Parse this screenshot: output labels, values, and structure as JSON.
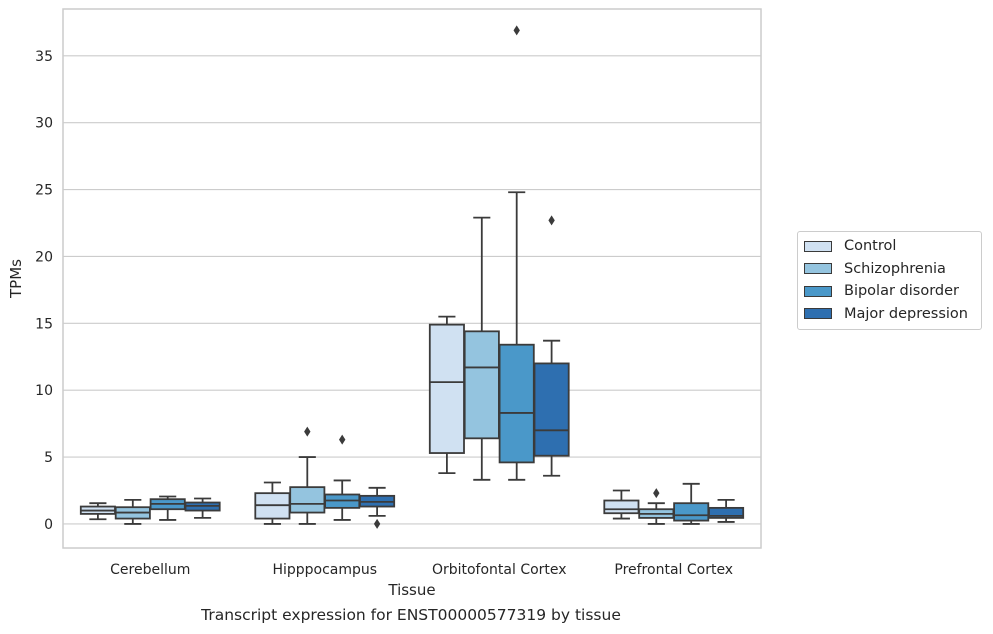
{
  "caption": "Transcript expression for ENST00000577319 by tissue",
  "chart_data": {
    "type": "box",
    "title": "",
    "xlabel": "Tissue",
    "ylabel": "TPMs",
    "ylim": [
      -1.8,
      38.5
    ],
    "yticks": [
      0,
      5,
      10,
      15,
      20,
      25,
      30,
      35
    ],
    "grid": "horizontal",
    "legend_position": "right",
    "categories": [
      "Cerebellum",
      "Hipppocampus",
      "Orbitofontal Cortex",
      "Prefrontal Cortex"
    ],
    "series": [
      {
        "name": "Control",
        "color": "#d0e1f2",
        "boxes": [
          {
            "whislo": 0.35,
            "q1": 0.75,
            "med": 1.0,
            "q3": 1.3,
            "whishi": 1.55,
            "fliers": []
          },
          {
            "whislo": 0.0,
            "q1": 0.4,
            "med": 1.4,
            "q3": 2.3,
            "whishi": 3.1,
            "fliers": []
          },
          {
            "whislo": 3.8,
            "q1": 5.3,
            "med": 10.6,
            "q3": 14.9,
            "whishi": 15.5,
            "fliers": []
          },
          {
            "whislo": 0.4,
            "q1": 0.8,
            "med": 1.1,
            "q3": 1.75,
            "whishi": 2.5,
            "fliers": []
          }
        ]
      },
      {
        "name": "Schizophrenia",
        "color": "#94c4df",
        "boxes": [
          {
            "whislo": 0.0,
            "q1": 0.4,
            "med": 0.85,
            "q3": 1.25,
            "whishi": 1.8,
            "fliers": []
          },
          {
            "whislo": 0.0,
            "q1": 0.85,
            "med": 1.5,
            "q3": 2.75,
            "whishi": 5.0,
            "fliers": [
              6.9
            ]
          },
          {
            "whislo": 3.3,
            "q1": 6.4,
            "med": 11.7,
            "q3": 14.4,
            "whishi": 22.9,
            "fliers": []
          },
          {
            "whislo": 0.0,
            "q1": 0.45,
            "med": 0.75,
            "q3": 1.1,
            "whishi": 1.55,
            "fliers": [
              2.3
            ]
          }
        ]
      },
      {
        "name": "Bipolar disorder",
        "color": "#4a98c9",
        "boxes": [
          {
            "whislo": 0.3,
            "q1": 1.1,
            "med": 1.5,
            "q3": 1.85,
            "whishi": 2.05,
            "fliers": []
          },
          {
            "whislo": 0.3,
            "q1": 1.2,
            "med": 1.75,
            "q3": 2.2,
            "whishi": 3.25,
            "fliers": [
              6.3
            ]
          },
          {
            "whislo": 3.3,
            "q1": 4.6,
            "med": 8.3,
            "q3": 13.4,
            "whishi": 24.8,
            "fliers": [
              36.9
            ]
          },
          {
            "whislo": 0.0,
            "q1": 0.25,
            "med": 0.65,
            "q3": 1.55,
            "whishi": 3.0,
            "fliers": []
          }
        ]
      },
      {
        "name": "Major depression",
        "color": "#2e6fb0",
        "boxes": [
          {
            "whislo": 0.45,
            "q1": 1.0,
            "med": 1.35,
            "q3": 1.6,
            "whishi": 1.9,
            "fliers": []
          },
          {
            "whislo": 0.6,
            "q1": 1.3,
            "med": 1.65,
            "q3": 2.1,
            "whishi": 2.7,
            "fliers": [
              0.0
            ]
          },
          {
            "whislo": 3.6,
            "q1": 5.1,
            "med": 7.0,
            "q3": 12.0,
            "whishi": 13.7,
            "fliers": [
              22.7
            ]
          },
          {
            "whislo": 0.15,
            "q1": 0.45,
            "med": 0.6,
            "q3": 1.2,
            "whishi": 1.8,
            "fliers": []
          }
        ]
      }
    ]
  }
}
